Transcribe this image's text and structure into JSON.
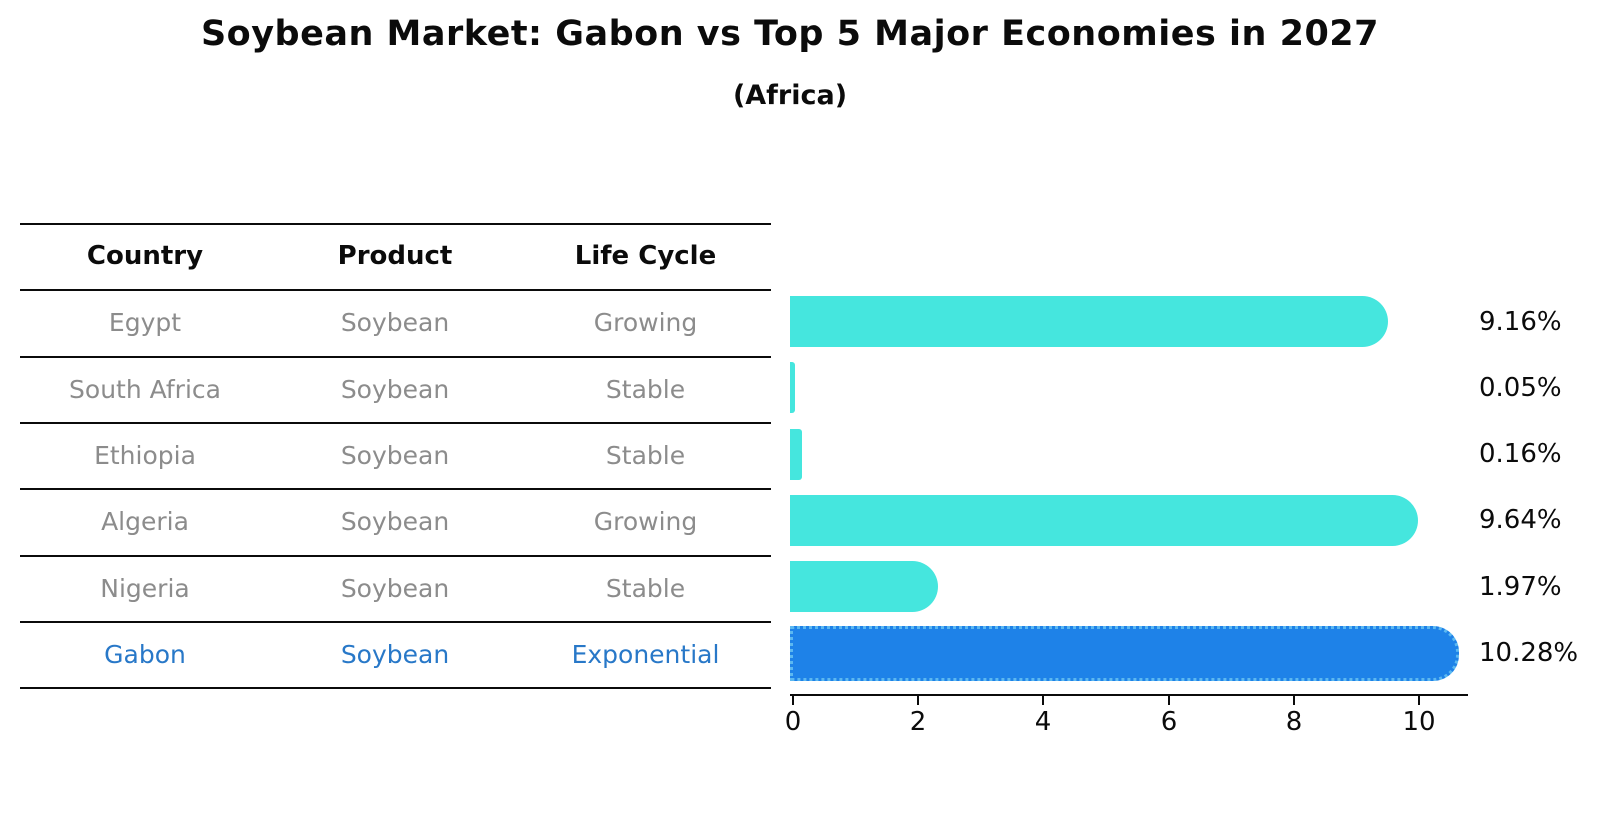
{
  "title": "Soybean Market: Gabon vs Top 5 Major Economies in 2027",
  "subtitle": "(Africa)",
  "table": {
    "headers": [
      "Country",
      "Product",
      "Life Cycle"
    ],
    "rows": [
      {
        "country": "Egypt",
        "product": "Soybean",
        "life_cycle": "Growing",
        "highlight": false
      },
      {
        "country": "South Africa",
        "product": "Soybean",
        "life_cycle": "Stable",
        "highlight": false
      },
      {
        "country": "Ethiopia",
        "product": "Soybean",
        "life_cycle": "Stable",
        "highlight": false
      },
      {
        "country": "Algeria",
        "product": "Soybean",
        "life_cycle": "Growing",
        "highlight": false
      },
      {
        "country": "Nigeria",
        "product": "Soybean",
        "life_cycle": "Stable",
        "highlight": false
      },
      {
        "country": "Gabon",
        "product": "Soybean",
        "life_cycle": "Exponential",
        "highlight": true
      }
    ]
  },
  "chart_data": {
    "type": "bar",
    "orientation": "horizontal",
    "title": "Soybean Market: Gabon vs Top 5 Major Economies in 2027",
    "subtitle": "(Africa)",
    "categories": [
      "Egypt",
      "South Africa",
      "Ethiopia",
      "Algeria",
      "Nigeria",
      "Gabon"
    ],
    "values": [
      9.16,
      0.05,
      0.16,
      9.64,
      1.97,
      10.28
    ],
    "value_labels": [
      "9.16%",
      "0.05%",
      "0.16%",
      "9.64%",
      "1.97%",
      "10.28%"
    ],
    "highlight_index": 5,
    "x_ticks": [
      "0",
      "2",
      "4",
      "6",
      "8",
      "10"
    ],
    "x_tick_values": [
      0,
      2,
      4,
      6,
      8,
      10
    ],
    "xlim": [
      0,
      10.8
    ],
    "grid": false,
    "legend": false
  },
  "colors": {
    "bar": "#45E6DE",
    "highlight_bar": "#1E82E8",
    "highlight_edge": "#5CB8F0",
    "highlight_text": "#2878C8",
    "row_text": "#8C8C8C",
    "header_text": "#0B0B0B",
    "axis": "#000000",
    "background": "#FFFFFF"
  }
}
